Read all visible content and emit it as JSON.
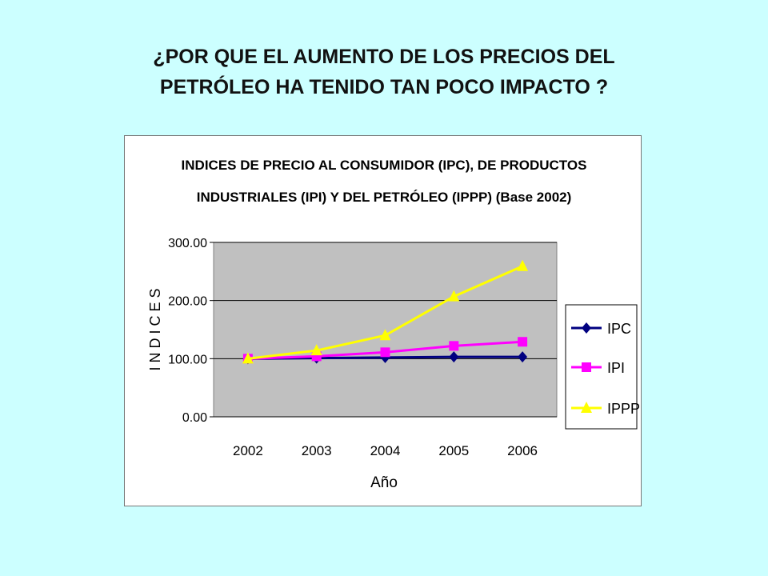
{
  "slide": {
    "title_line1": "¿POR QUE EL AUMENTO DE LOS PRECIOS DEL",
    "title_line2": "PETRÓLEO HA TENIDO TAN POCO IMPACTO ?"
  },
  "chart_data": {
    "type": "line",
    "title_line1": "INDICES DE PRECIO AL CONSUMIDOR (IPC), DE PRODUCTOS",
    "title_line2": "INDUSTRIALES (IPI) Y DEL PETRÓLEO (IPPP) (Base 2002)",
    "xlabel": "Año",
    "ylabel": "I N D I C E S",
    "categories": [
      "2002",
      "2003",
      "2004",
      "2005",
      "2006"
    ],
    "yticks": [
      "0.00",
      "100.00",
      "200.00",
      "300.00"
    ],
    "ylim": [
      0,
      300
    ],
    "grid": true,
    "legend_position": "right",
    "plot_background": "#c0c0c0",
    "series": [
      {
        "name": "IPC",
        "color": "#000080",
        "marker": "diamond",
        "values": [
          100,
          101,
          102,
          103,
          103
        ]
      },
      {
        "name": "IPI",
        "color": "#ff00ff",
        "marker": "square",
        "values": [
          100,
          104,
          111,
          122,
          129
        ]
      },
      {
        "name": "IPPP",
        "color": "#ffff00",
        "marker": "triangle",
        "values": [
          100,
          114,
          140,
          207,
          259
        ]
      }
    ]
  }
}
